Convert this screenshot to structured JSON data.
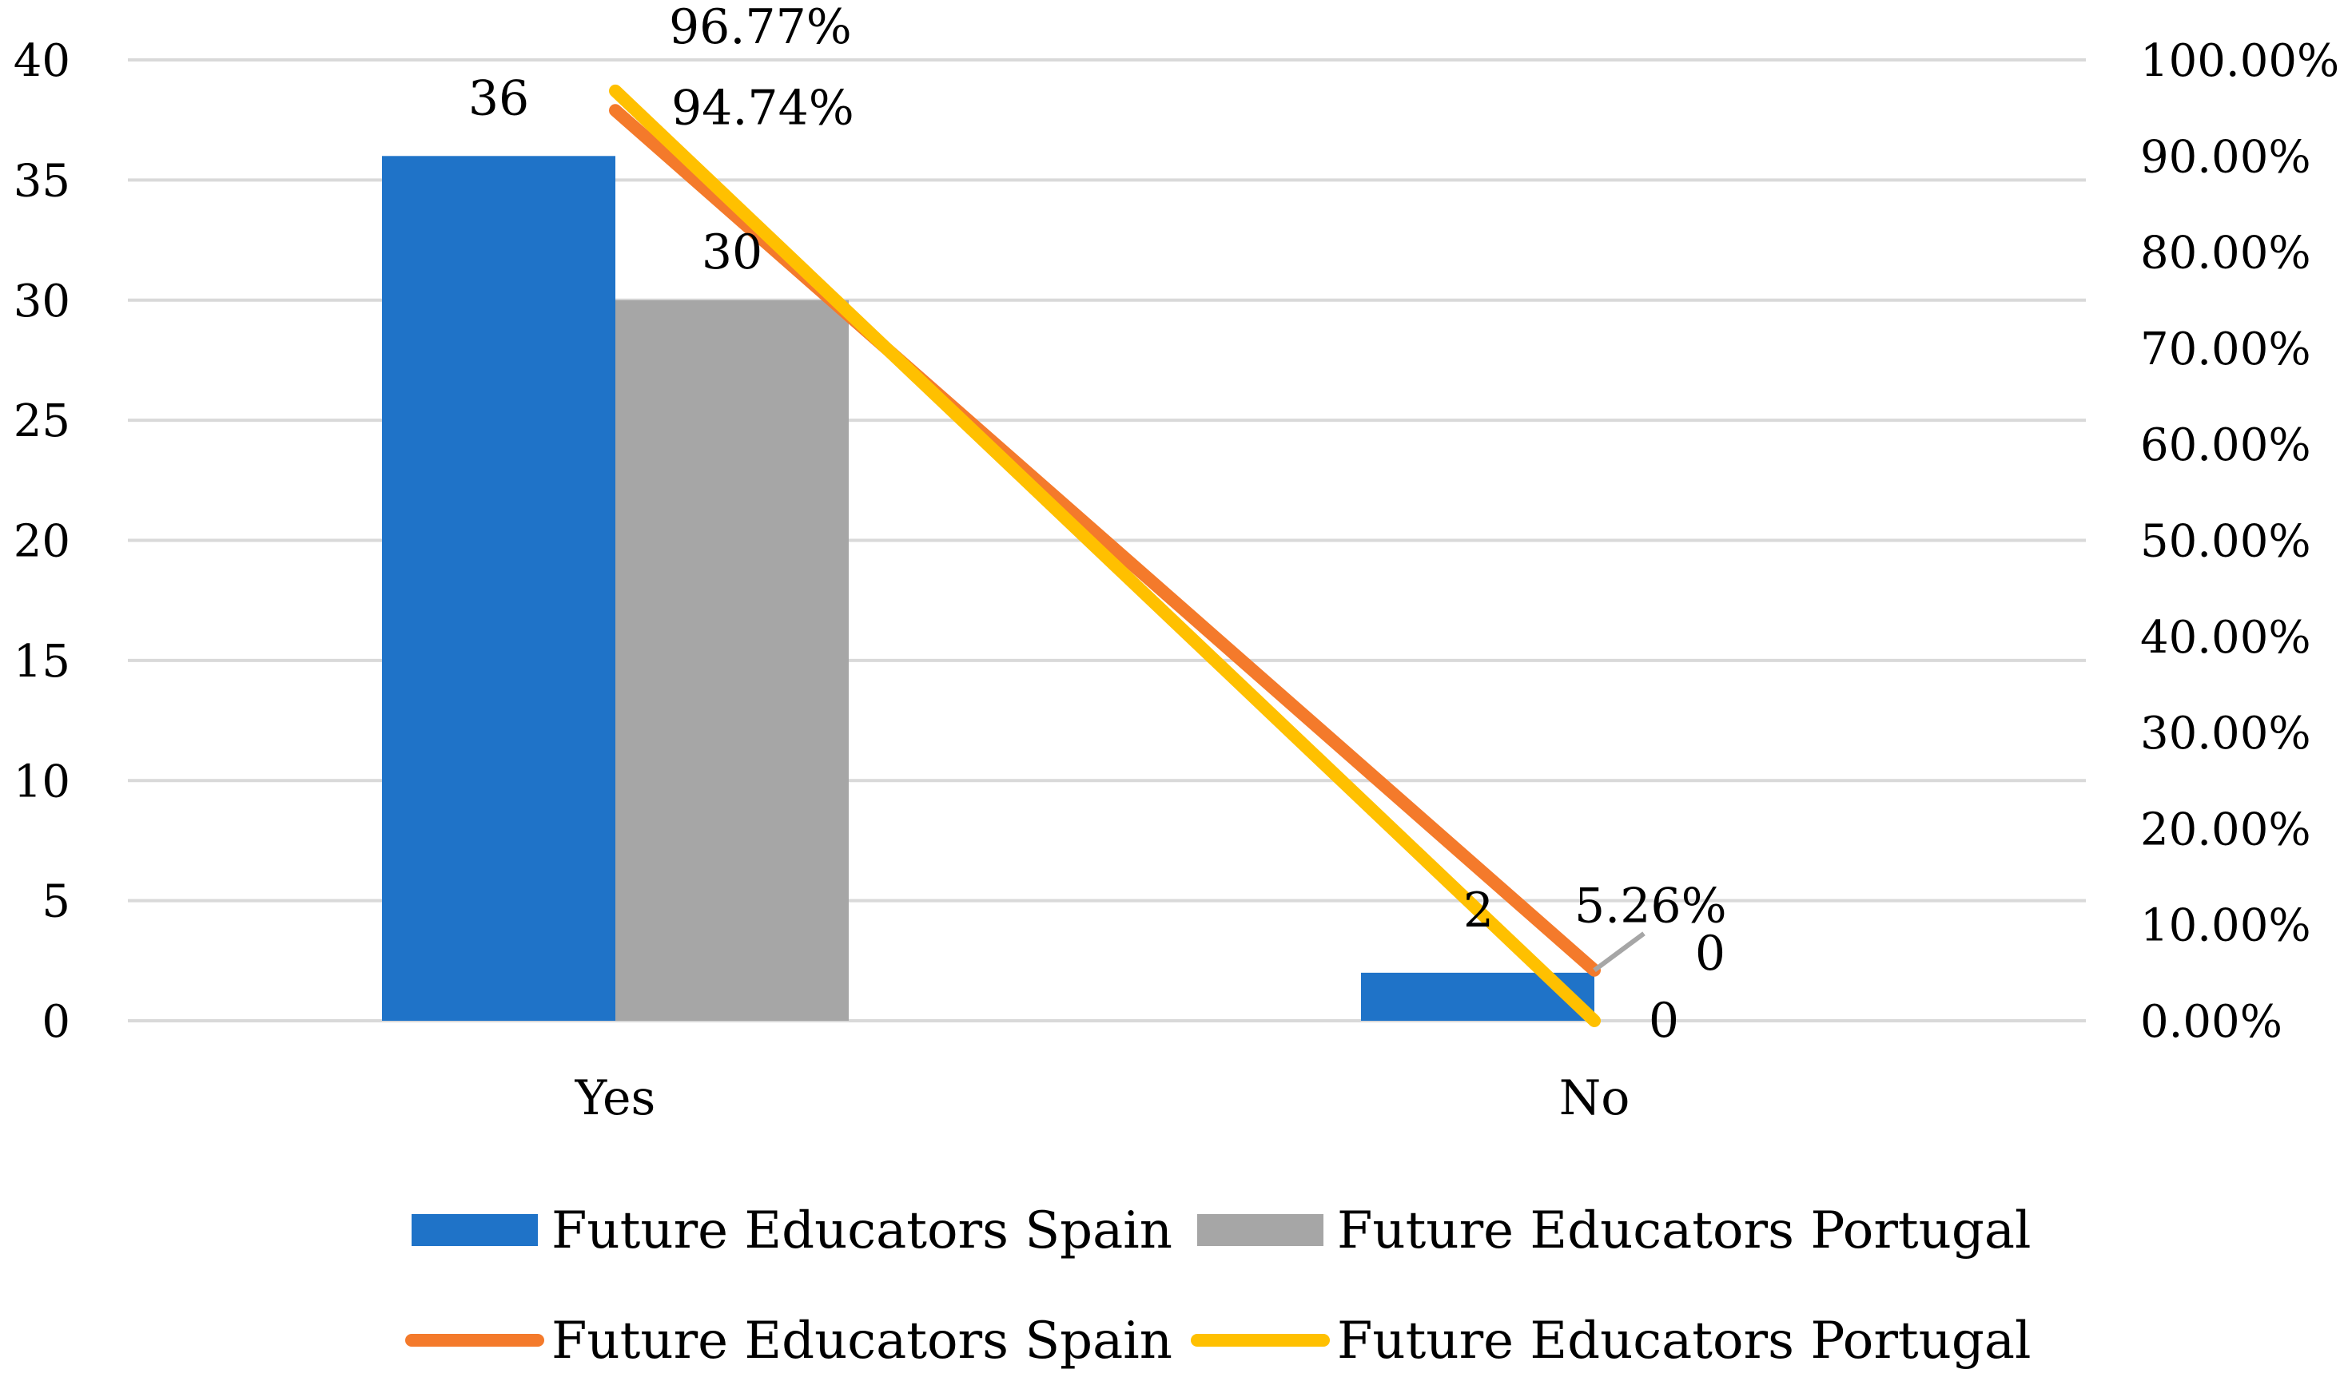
{
  "chart_data": {
    "type": "bar+line",
    "categories": [
      "Yes",
      "No"
    ],
    "bar_series": [
      {
        "name": "Future Educators Spain",
        "values": [
          36,
          2
        ],
        "color": "#1F73C8",
        "labels": [
          "36",
          "2"
        ]
      },
      {
        "name": "Future Educators Portugal",
        "values": [
          30,
          0
        ],
        "color": "#A6A6A6",
        "labels": [
          "30",
          "0"
        ]
      }
    ],
    "line_series": [
      {
        "name": "Future Educators Spain",
        "values": [
          94.74,
          5.26
        ],
        "color": "#F47A2B",
        "labels": [
          "94.74%",
          "5.26%"
        ]
      },
      {
        "name": "Future Educators Portugal",
        "values": [
          96.77,
          0
        ],
        "color": "#FFC000",
        "labels": [
          "96.77%",
          "0"
        ]
      }
    ],
    "y_left": {
      "min": 0,
      "max": 40,
      "step": 5,
      "ticks": [
        "0",
        "5",
        "10",
        "15",
        "20",
        "25",
        "30",
        "35",
        "40"
      ]
    },
    "y_right": {
      "min": 0,
      "max": 100,
      "ticks": [
        "0.00%",
        "10.00%",
        "20.00%",
        "30.00%",
        "40.00%",
        "50.00%",
        "60.00%",
        "70.00%",
        "80.00%",
        "90.00%",
        "100.00%"
      ]
    },
    "grid": true,
    "legend_position": "bottom",
    "title": "",
    "xlabel": "",
    "ylabel": ""
  }
}
